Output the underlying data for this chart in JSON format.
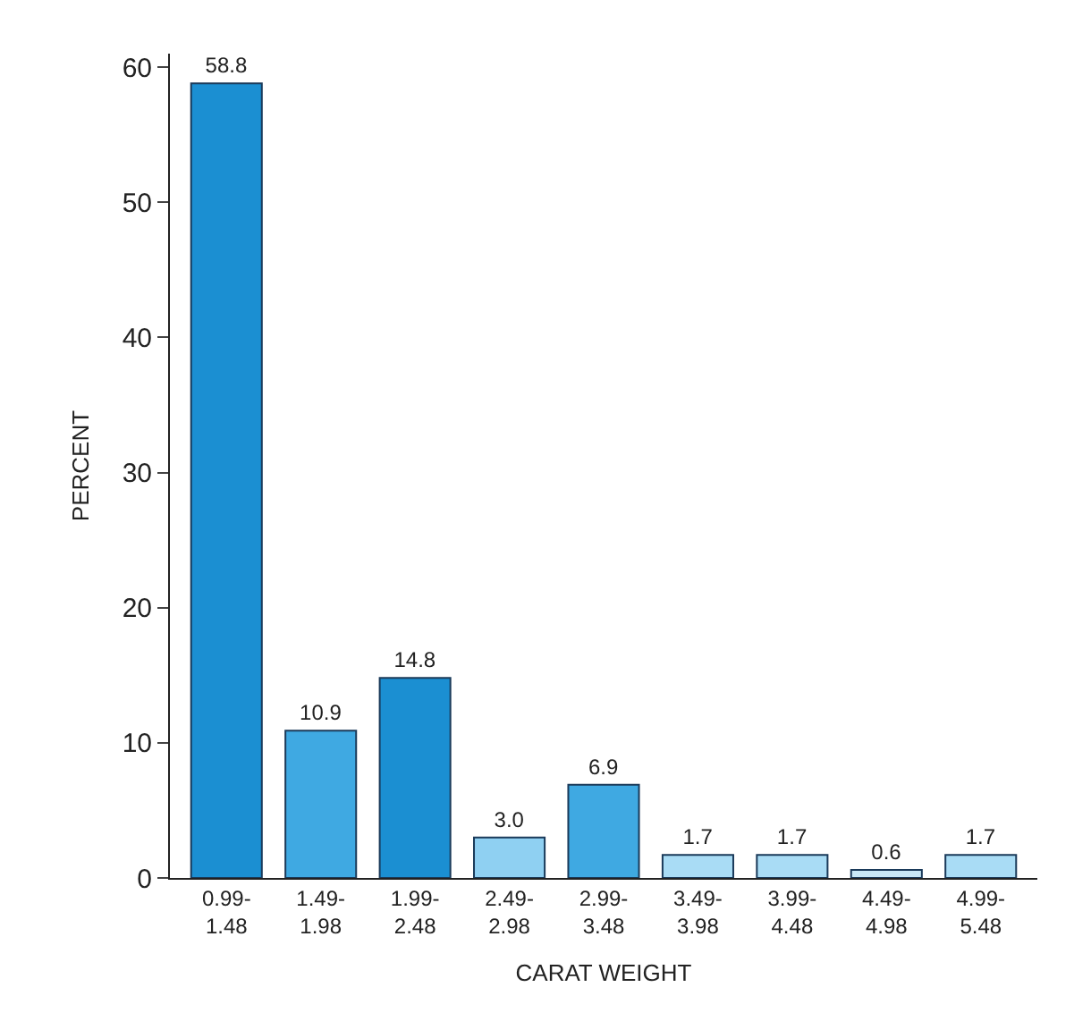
{
  "chart_data": {
    "type": "bar",
    "xlabel": "CARAT WEIGHT",
    "ylabel": "PERCENT",
    "categories": [
      "0.99-\n1.48",
      "1.49-\n1.98",
      "1.99-\n2.48",
      "2.49-\n2.98",
      "2.99-\n3.48",
      "3.49-\n3.98",
      "3.99-\n4.48",
      "4.49-\n4.98",
      "4.99-\n5.48"
    ],
    "values": [
      58.8,
      10.9,
      14.8,
      3.0,
      6.9,
      1.7,
      1.7,
      0.6,
      1.7
    ],
    "value_labels": [
      "58.8",
      "10.9",
      "14.8",
      "3.0",
      "6.9",
      "1.7",
      "1.7",
      "0.6",
      "1.7"
    ],
    "colors": [
      "#1b8fd2",
      "#3fa9e2",
      "#1b8fd2",
      "#8fd0f2",
      "#3fa9e2",
      "#a9dcf5",
      "#a9dcf5",
      "#c9e9f8",
      "#a9dcf5"
    ],
    "ylim": [
      0,
      61
    ],
    "yticks": [
      0,
      10,
      20,
      30,
      40,
      50,
      60
    ]
  }
}
